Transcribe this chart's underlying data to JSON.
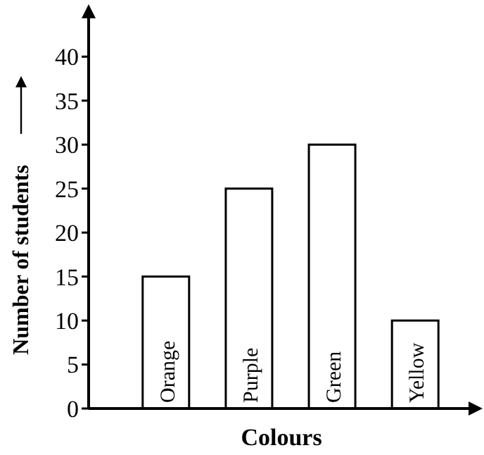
{
  "chart_data": {
    "type": "bar",
    "xlabel": "Colours",
    "ylabel": "Number of students",
    "categories": [
      "Orange",
      "Purple",
      "Green",
      "Yellow"
    ],
    "values": [
      15,
      25,
      30,
      10
    ],
    "color": "#ffffff",
    "ylim": [
      0,
      45
    ],
    "yticks": [
      0,
      5,
      10,
      15,
      20,
      25,
      30,
      35,
      40
    ],
    "grid": false
  }
}
